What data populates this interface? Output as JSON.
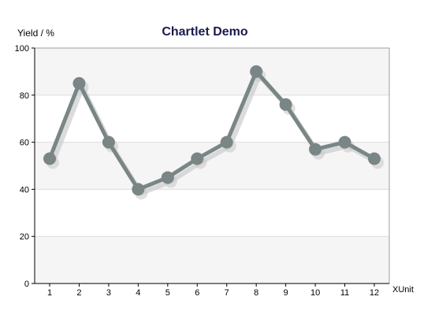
{
  "chart_data": {
    "type": "line",
    "title": "Chartlet Demo",
    "xlabel": "XUnit",
    "ylabel": "Yield / %",
    "x": [
      1,
      2,
      3,
      4,
      5,
      6,
      7,
      8,
      9,
      10,
      11,
      12
    ],
    "categories": [
      "1",
      "2",
      "3",
      "4",
      "5",
      "6",
      "7",
      "8",
      "9",
      "10",
      "11",
      "12"
    ],
    "series": [
      {
        "values": [
          53,
          85,
          60,
          40,
          45,
          53,
          60,
          90,
          76,
          57,
          60,
          53
        ]
      }
    ],
    "ylim": [
      0,
      100
    ],
    "yticks": [
      0,
      20,
      40,
      60,
      80,
      100
    ],
    "grid": true,
    "legend": "none",
    "colors": {
      "title": "#1a1a4e",
      "line": "#7a8585",
      "marker": "#7a8585",
      "band": "#f5f5f5",
      "gridline": "#dddddd",
      "axis": "#000000",
      "frame": "#888888",
      "shadow": "#cccccc"
    }
  }
}
